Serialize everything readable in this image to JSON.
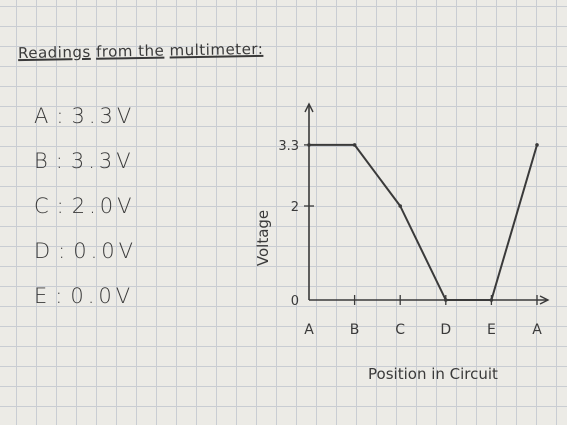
{
  "heading": {
    "title_part1": "Readings",
    "title_part2": "from the",
    "title_part3": "multimeter:"
  },
  "readings": [
    {
      "label": "A",
      "value": "3.3V"
    },
    {
      "label": "B",
      "value": "3.3V"
    },
    {
      "label": "C",
      "value": "2.0V"
    },
    {
      "label": "D",
      "value": "0.0V"
    },
    {
      "label": "E",
      "value": "0.0V"
    }
  ],
  "chart_data": {
    "type": "line",
    "xlabel": "Position in Circuit",
    "ylabel": "Voltage",
    "categories": [
      "A",
      "B",
      "C",
      "D",
      "E",
      "A"
    ],
    "y_ticks": [
      "0",
      "2",
      "3.3"
    ],
    "ylim": [
      0,
      4
    ],
    "series": [
      {
        "x": [
          0,
          1,
          2,
          3,
          4,
          5
        ],
        "values": [
          3.3,
          3.3,
          2.0,
          0.0,
          0.0,
          3.3
        ]
      }
    ],
    "grid": false,
    "line_color": "#3a3a3a"
  }
}
